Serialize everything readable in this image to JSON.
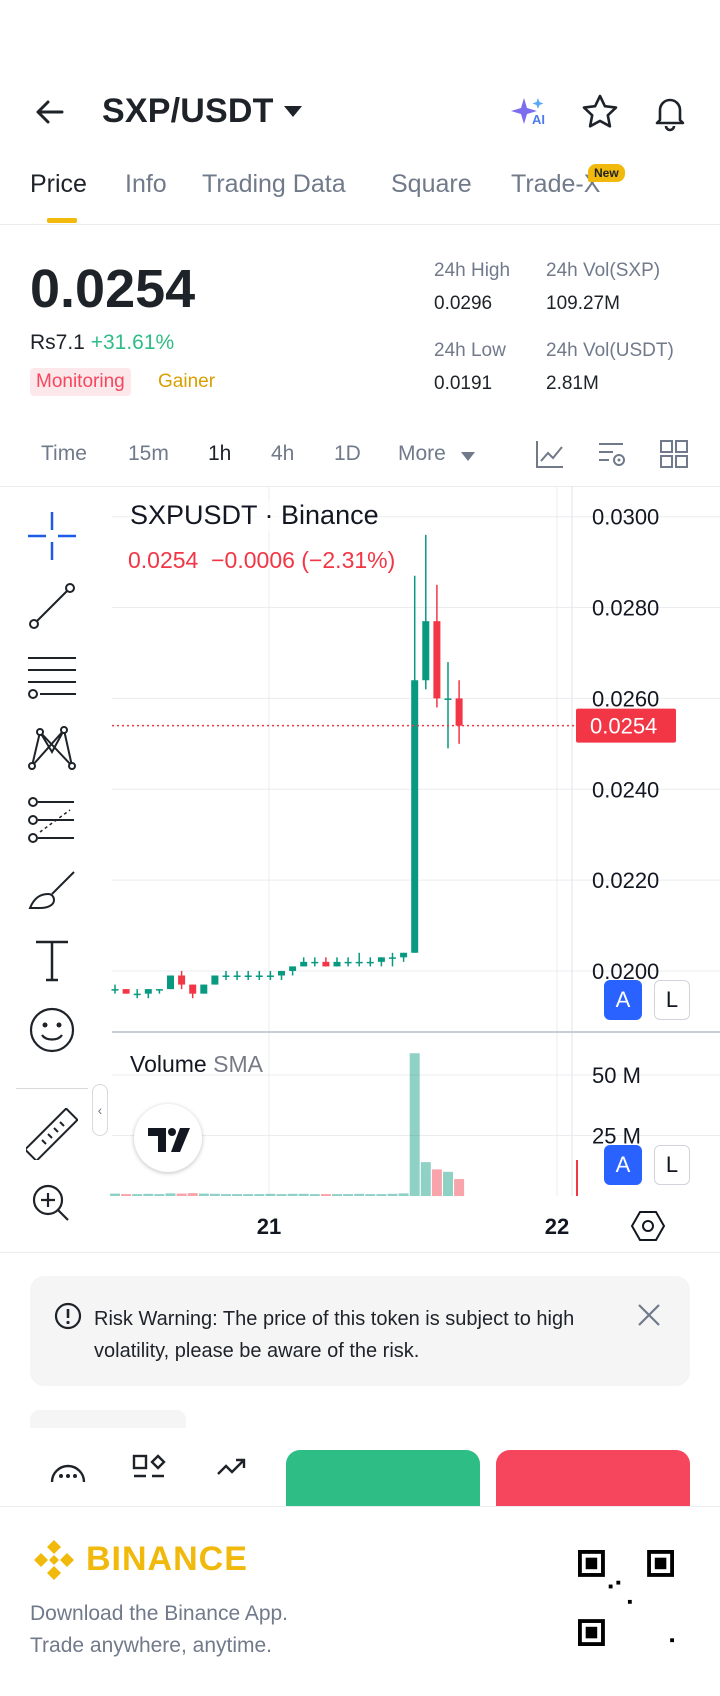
{
  "header": {
    "pair": "SXP/USDT",
    "ai_label": "AI"
  },
  "tabs": [
    {
      "label": "Price",
      "active": true
    },
    {
      "label": "Info"
    },
    {
      "label": "Trading Data"
    },
    {
      "label": "Square"
    },
    {
      "label": "Trade-X",
      "badge": "New"
    }
  ],
  "price": {
    "last": "0.0254",
    "fiat": "Rs7.1",
    "change_pct": "+31.61%",
    "tags": [
      "Monitoring",
      "Gainer"
    ]
  },
  "stats": {
    "high_label": "24h High",
    "high": "0.0296",
    "vol_sxp_label": "24h Vol(SXP)",
    "vol_sxp": "109.27M",
    "low_label": "24h Low",
    "low": "0.0191",
    "vol_usdt_label": "24h Vol(USDT)",
    "vol_usdt": "2.81M"
  },
  "intervals": [
    {
      "label": "Time"
    },
    {
      "label": "15m"
    },
    {
      "label": "1h",
      "active": true
    },
    {
      "label": "4h"
    },
    {
      "label": "1D"
    },
    {
      "label": "More"
    }
  ],
  "chart": {
    "symbol_title": "SXPUSDT · Binance",
    "ohlc_line": "0.0254  −0.0006 (−2.31%)",
    "current_price_tag": "0.0254",
    "price_ticks": [
      "0.0300",
      "0.0280",
      "0.0260",
      "0.0240",
      "0.0220",
      "0.0200"
    ],
    "volume_label": "Volume",
    "volume_sma": "SMA",
    "volume_ticks": [
      "50 M",
      "25 M"
    ],
    "x_ticks": [
      "21",
      "22"
    ],
    "auto_label": "A",
    "log_label": "L",
    "colors": {
      "up": "#089981",
      "down": "#f23645",
      "grid": "#eaecef"
    }
  },
  "chart_data": {
    "type": "candlestick",
    "title": "SXPUSDT · Binance",
    "xlabel": "",
    "ylabel": "",
    "x_ticks": [
      "21",
      "22"
    ],
    "ylim": [
      0.0187,
      0.0305
    ],
    "candles": [
      {
        "o": 0.0196,
        "h": 0.0197,
        "l": 0.0195,
        "c": 0.0196
      },
      {
        "o": 0.0196,
        "h": 0.0196,
        "l": 0.0195,
        "c": 0.0195
      },
      {
        "o": 0.0195,
        "h": 0.0196,
        "l": 0.0194,
        "c": 0.0195
      },
      {
        "o": 0.0195,
        "h": 0.0196,
        "l": 0.0194,
        "c": 0.0196
      },
      {
        "o": 0.0196,
        "h": 0.0196,
        "l": 0.0195,
        "c": 0.0196
      },
      {
        "o": 0.0196,
        "h": 0.0199,
        "l": 0.0196,
        "c": 0.0199
      },
      {
        "o": 0.0199,
        "h": 0.02,
        "l": 0.0196,
        "c": 0.0197
      },
      {
        "o": 0.0197,
        "h": 0.0197,
        "l": 0.0194,
        "c": 0.0195
      },
      {
        "o": 0.0195,
        "h": 0.0197,
        "l": 0.0195,
        "c": 0.0197
      },
      {
        "o": 0.0197,
        "h": 0.0199,
        "l": 0.0197,
        "c": 0.0199
      },
      {
        "o": 0.0199,
        "h": 0.02,
        "l": 0.0198,
        "c": 0.0199
      },
      {
        "o": 0.0199,
        "h": 0.02,
        "l": 0.0198,
        "c": 0.0199
      },
      {
        "o": 0.0199,
        "h": 0.02,
        "l": 0.0198,
        "c": 0.0199
      },
      {
        "o": 0.0199,
        "h": 0.02,
        "l": 0.0198,
        "c": 0.0199
      },
      {
        "o": 0.0199,
        "h": 0.02,
        "l": 0.0198,
        "c": 0.0199
      },
      {
        "o": 0.0199,
        "h": 0.02,
        "l": 0.0198,
        "c": 0.02
      },
      {
        "o": 0.02,
        "h": 0.0201,
        "l": 0.0199,
        "c": 0.0201
      },
      {
        "o": 0.0201,
        "h": 0.0203,
        "l": 0.0201,
        "c": 0.0202
      },
      {
        "o": 0.0202,
        "h": 0.0203,
        "l": 0.0201,
        "c": 0.0202
      },
      {
        "o": 0.0202,
        "h": 0.0203,
        "l": 0.0201,
        "c": 0.0201
      },
      {
        "o": 0.0201,
        "h": 0.0203,
        "l": 0.0201,
        "c": 0.0202
      },
      {
        "o": 0.0202,
        "h": 0.0203,
        "l": 0.0201,
        "c": 0.0202
      },
      {
        "o": 0.0202,
        "h": 0.0204,
        "l": 0.0201,
        "c": 0.0202
      },
      {
        "o": 0.0202,
        "h": 0.0203,
        "l": 0.0201,
        "c": 0.0202
      },
      {
        "o": 0.0202,
        "h": 0.0203,
        "l": 0.0201,
        "c": 0.0203
      },
      {
        "o": 0.0203,
        "h": 0.0204,
        "l": 0.0201,
        "c": 0.0203
      },
      {
        "o": 0.0203,
        "h": 0.0204,
        "l": 0.0202,
        "c": 0.0204
      },
      {
        "o": 0.0204,
        "h": 0.0287,
        "l": 0.0204,
        "c": 0.0264
      },
      {
        "o": 0.0264,
        "h": 0.0296,
        "l": 0.0262,
        "c": 0.0277
      },
      {
        "o": 0.0277,
        "h": 0.0285,
        "l": 0.0258,
        "c": 0.026
      },
      {
        "o": 0.026,
        "h": 0.0268,
        "l": 0.0249,
        "c": 0.026
      },
      {
        "o": 0.026,
        "h": 0.0264,
        "l": 0.025,
        "c": 0.0254
      }
    ],
    "volume": [
      1,
      0.8,
      0.8,
      0.9,
      0.8,
      1.1,
      1,
      1.2,
      1,
      0.9,
      0.8,
      0.8,
      0.8,
      0.8,
      0.9,
      0.8,
      0.9,
      0.9,
      0.8,
      0.8,
      0.8,
      0.8,
      0.9,
      0.8,
      0.8,
      0.9,
      1.1,
      59,
      14,
      11,
      10,
      7
    ]
  },
  "risk": {
    "text": "Risk Warning: The price of this token is subject to high volatility, please be aware of the risk."
  },
  "footer": {
    "brand": "BINANCE",
    "line1": "Download the Binance App.",
    "line2": "Trade anywhere, anytime."
  }
}
